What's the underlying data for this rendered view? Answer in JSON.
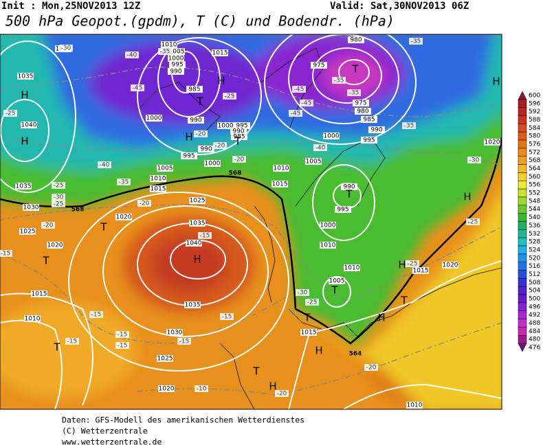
{
  "header": {
    "init": "Init : Mon,25NOV2013 12Z",
    "valid": "Valid: Sat,30NOV2013 06Z",
    "title": "500 hPa Geopot.(gpdm), T (C) und Bodendr. (hPa)"
  },
  "map": {
    "pressure_labels": [
      "1015",
      "1035",
      "1040",
      "1035",
      "1030",
      "1025",
      "1020",
      "1015",
      "1010",
      "1020",
      "1025",
      "1035",
      "1040",
      "1035",
      "1030",
      "1025",
      "1020",
      "1015",
      "1010",
      "1005",
      "1010",
      "1000",
      "995",
      "990",
      "1010",
      "1015",
      "1020",
      "1020",
      "1000",
      "995",
      "990",
      "985",
      "980",
      "975",
      "975",
      "980",
      "1015",
      "1010",
      "1005",
      "1000",
      "995",
      "990",
      "985",
      "1000",
      "990",
      "1000",
      "995",
      "990",
      "985",
      "990",
      "995",
      "1005",
      "1000",
      "1010",
      "1005",
      "1015",
      "1015",
      "1010"
    ],
    "temperature_labels": [
      "-30",
      "-25",
      "-40",
      "-45",
      "-35",
      "-25",
      "-20",
      "-20",
      "-40",
      "-35",
      "-25",
      "-30",
      "-25",
      "-20",
      "-20",
      "-20",
      "-15",
      "-15",
      "-15",
      "-15",
      "-15",
      "-15",
      "-15",
      "-10",
      "-15",
      "-20",
      "-20",
      "-25",
      "-30",
      "-25",
      "-25",
      "-30",
      "-35",
      "-40",
      "-45",
      "-45",
      "-35",
      "-35",
      "-35",
      "-45"
    ],
    "centers": [
      "H",
      "H",
      "H",
      "H",
      "H",
      "H",
      "H",
      "H",
      "H",
      "H",
      "H",
      "T",
      "T",
      "T",
      "T",
      "T",
      "T",
      "T",
      "T",
      "T",
      "T",
      "T"
    ],
    "height_labels": [
      "568",
      "568",
      "564"
    ]
  },
  "colorbar": {
    "levels": [
      600,
      596,
      592,
      588,
      584,
      580,
      576,
      572,
      568,
      564,
      560,
      556,
      552,
      548,
      544,
      540,
      536,
      532,
      528,
      524,
      520,
      516,
      512,
      508,
      504,
      500,
      496,
      492,
      488,
      484,
      480,
      476
    ],
    "colors": [
      "#8b1a3a",
      "#a81c28",
      "#bc2420",
      "#cc3420",
      "#d84820",
      "#e05c1a",
      "#e87418",
      "#ee8a18",
      "#f0a020",
      "#f2b828",
      "#f2d030",
      "#ecec30",
      "#c8e430",
      "#a0da30",
      "#6cc830",
      "#38b830",
      "#20b060",
      "#20b890",
      "#20c0c0",
      "#20b0e8",
      "#2090f0",
      "#2070f0",
      "#2050e0",
      "#3434d0",
      "#5020c8",
      "#6818c8",
      "#8820d0",
      "#a828d0",
      "#c030c8",
      "#c828b0",
      "#a01890",
      "#701070"
    ]
  },
  "footer": {
    "lines": [
      "Daten: GFS-Modell des amerikanischen Wetterdienstes",
      "(C) Wetterzentrale",
      "www.wetterzentrale.de"
    ]
  }
}
